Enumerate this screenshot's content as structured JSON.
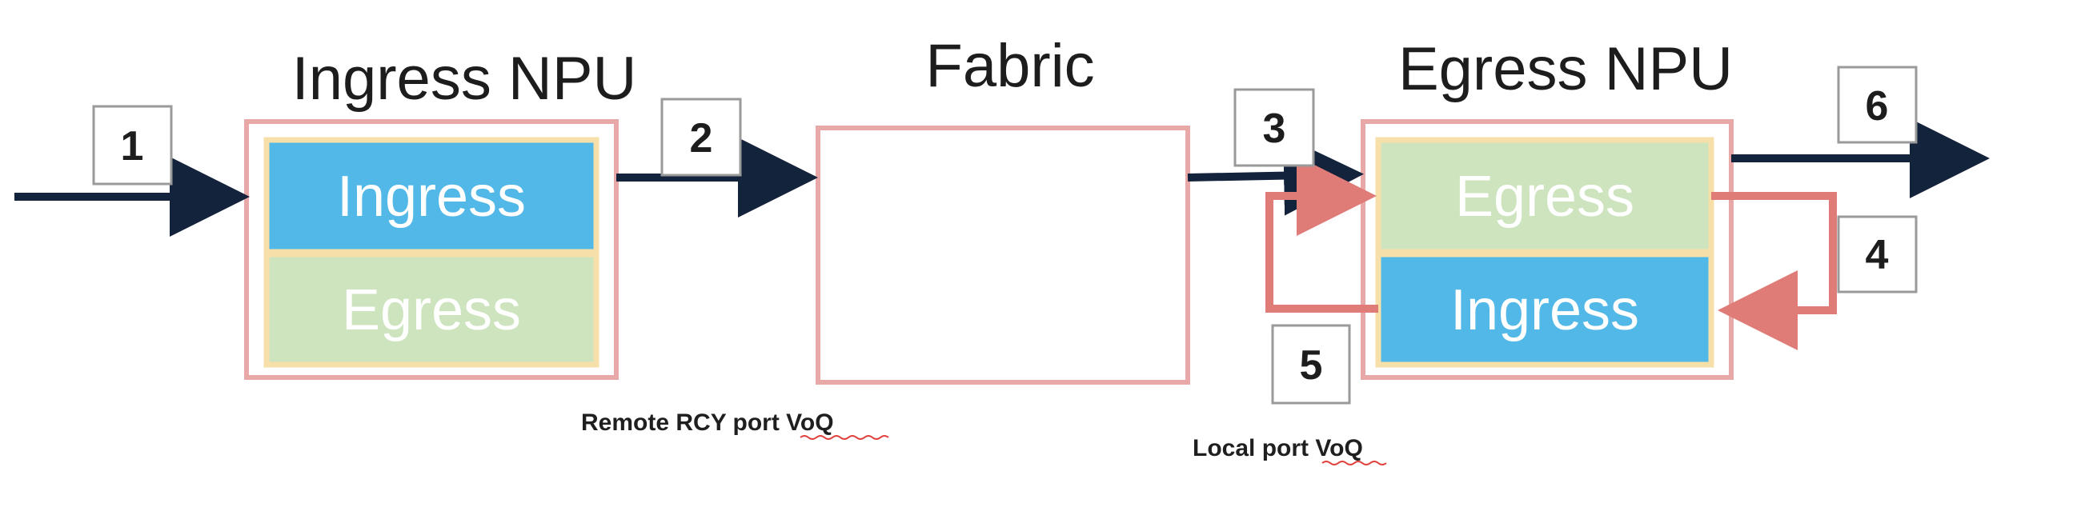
{
  "ingress_npu": {
    "title": "Ingress NPU",
    "top_block": "Ingress",
    "bottom_block": "Egress"
  },
  "fabric": {
    "title": "Fabric"
  },
  "egress_npu": {
    "title": "Egress NPU",
    "top_block": "Egress",
    "bottom_block": "Ingress"
  },
  "steps": [
    "1",
    "2",
    "3",
    "4",
    "5",
    "6"
  ],
  "notes": {
    "remote": "Remote RCY port VoQ",
    "local": "Local port VoQ"
  },
  "colors": {
    "ingress_block": "#52b8e8",
    "egress_block": "#cde4bf",
    "block_border": "#f6dfa8",
    "npu_border": "#e9a8a8",
    "flow_arrow": "#14233c",
    "recycle_arrow": "#e07c78",
    "step_box": "#9a9a9a"
  }
}
